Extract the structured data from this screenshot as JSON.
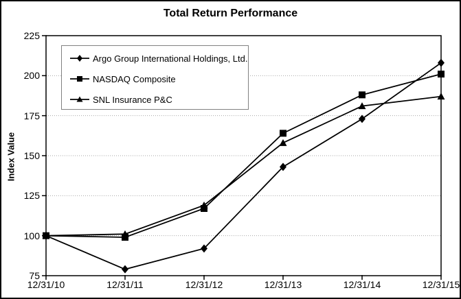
{
  "chart_data": {
    "type": "line",
    "title": "Total Return Performance",
    "ylabel": "Index Value",
    "x_categories": [
      "12/31/10",
      "12/31/11",
      "12/31/12",
      "12/31/13",
      "12/31/14",
      "12/31/15"
    ],
    "y_ticks": [
      225,
      200,
      175,
      150,
      125,
      100,
      75
    ],
    "ylim": [
      75,
      225
    ],
    "gridline_values": [
      200,
      175,
      150,
      125,
      100
    ],
    "grid": true,
    "legend_position": "top-left",
    "series": [
      {
        "name": "Argo Group International Holdings, Ltd.",
        "marker": "diamond",
        "color": "#000000",
        "values": [
          100,
          79,
          92,
          143,
          173,
          208
        ]
      },
      {
        "name": "NASDAQ Composite",
        "marker": "square",
        "color": "#000000",
        "values": [
          100,
          99,
          117,
          164,
          188,
          201
        ]
      },
      {
        "name": "SNL Insurance P&C",
        "marker": "triangle",
        "color": "#000000",
        "values": [
          100,
          101,
          119,
          158,
          181,
          187
        ]
      }
    ],
    "colors": {
      "series": "#000000",
      "axis": "#000000",
      "grid": "#a6a6a6",
      "legend_border": "#808080",
      "background": "#ffffff"
    }
  }
}
